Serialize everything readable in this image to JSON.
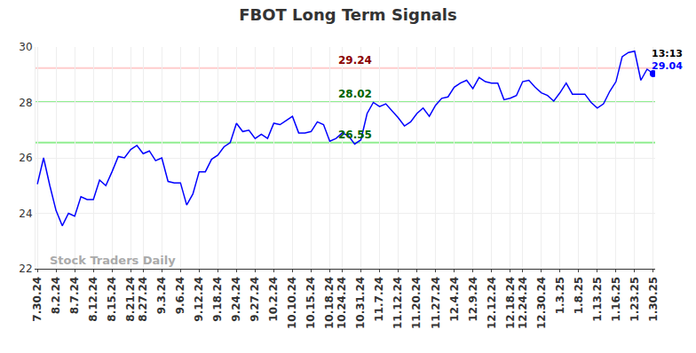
{
  "chart_data": {
    "type": "line",
    "title": "FBOT Long Term Signals",
    "color": "#0000ff",
    "categories": [
      "7.30.24",
      null,
      null,
      "8.2.24",
      null,
      null,
      "8.7.24",
      null,
      null,
      "8.12.24",
      null,
      null,
      "8.15.24",
      null,
      null,
      "8.21.24",
      null,
      "8.27.24",
      null,
      null,
      "9.3.24",
      null,
      null,
      "9.6.24",
      null,
      null,
      "9.12.24",
      null,
      null,
      "9.18.24",
      null,
      null,
      "9.24.24",
      null,
      null,
      "9.27.24",
      null,
      null,
      "10.2.24",
      null,
      null,
      "10.10.24",
      null,
      null,
      "10.15.24",
      null,
      null,
      "10.18.24",
      null,
      "10.24.24",
      null,
      null,
      "10.31.24",
      null,
      null,
      "11.7.24",
      null,
      null,
      "11.12.24",
      null,
      null,
      "11.20.24",
      null,
      null,
      "11.27.24",
      null,
      null,
      "12.4.24",
      null,
      null,
      "12.9.24",
      null,
      null,
      "12.12.24",
      null,
      null,
      "12.18.24",
      null,
      "12.24.24",
      null,
      null,
      "12.30.24",
      null,
      null,
      "1.3.25",
      null,
      null,
      "1.8.25",
      null,
      null,
      "1.13.25",
      null,
      null,
      "1.16.25",
      null,
      null,
      "1.23.25",
      null,
      null,
      "1.30.25"
    ],
    "values": [
      25.05,
      26.0,
      25.0,
      24.1,
      23.55,
      24.0,
      23.9,
      24.6,
      24.5,
      24.5,
      25.2,
      25.0,
      25.5,
      26.05,
      26.0,
      26.3,
      26.45,
      26.15,
      26.25,
      25.9,
      26.0,
      25.15,
      25.1,
      25.1,
      24.3,
      24.7,
      25.5,
      25.5,
      25.95,
      26.1,
      26.4,
      26.55,
      27.25,
      26.95,
      27.0,
      26.7,
      26.85,
      26.7,
      27.25,
      27.2,
      27.35,
      27.5,
      26.9,
      26.9,
      26.95,
      27.3,
      27.2,
      26.6,
      26.7,
      26.9,
      26.8,
      26.5,
      26.65,
      27.6,
      28.0,
      27.85,
      27.95,
      27.7,
      27.45,
      27.15,
      27.3,
      27.6,
      27.8,
      27.5,
      27.9,
      28.15,
      28.2,
      28.55,
      28.7,
      28.8,
      28.5,
      28.9,
      28.75,
      28.7,
      28.7,
      28.1,
      28.15,
      28.25,
      28.75,
      28.8,
      28.55,
      28.35,
      28.25,
      28.05,
      28.35,
      28.7,
      28.3,
      28.3,
      28.3,
      28.0,
      27.8,
      27.95,
      28.4,
      28.75,
      29.65,
      29.8,
      29.85,
      28.8,
      29.2,
      29.04
    ],
    "ylim": [
      22,
      30
    ],
    "yticks": [
      22,
      24,
      26,
      28,
      30
    ],
    "grid": true,
    "levels": [
      {
        "value": 29.24,
        "label": "29.24",
        "color": "#ffcccc",
        "label_color": "#8b0000"
      },
      {
        "value": 28.02,
        "label": "28.02",
        "color": "#90ee90",
        "label_color": "#006400"
      },
      {
        "value": 26.55,
        "label": "26.55",
        "color": "#90ee90",
        "label_color": "#006400"
      }
    ],
    "last_point": {
      "time": "13:13",
      "label": "29.04",
      "value": 29.04
    },
    "watermark": "Stock Traders Daily"
  }
}
